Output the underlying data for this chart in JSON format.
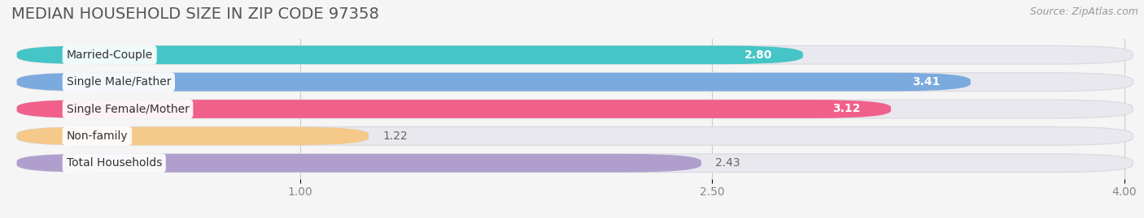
{
  "title": "MEDIAN HOUSEHOLD SIZE IN ZIP CODE 97358",
  "source": "Source: ZipAtlas.com",
  "categories": [
    "Married-Couple",
    "Single Male/Father",
    "Single Female/Mother",
    "Non-family",
    "Total Households"
  ],
  "values": [
    2.8,
    3.41,
    3.12,
    1.22,
    2.43
  ],
  "bar_colors": [
    "#45c5c5",
    "#7baade",
    "#f0608a",
    "#f5c98a",
    "#b09fcc"
  ],
  "xlim_data": [
    0,
    4.0
  ],
  "xlim_display": [
    -0.05,
    4.05
  ],
  "xticks": [
    1.0,
    2.5,
    4.0
  ],
  "value_label_inside": [
    true,
    true,
    true,
    false,
    false
  ],
  "title_fontsize": 14,
  "tick_fontsize": 10,
  "source_fontsize": 9,
  "background_color": "#f5f5f5",
  "bar_bg_color": "#e8e8ee",
  "bar_bg_border": "#d8d8e0",
  "label_fontsize": 10,
  "value_fontsize": 10
}
